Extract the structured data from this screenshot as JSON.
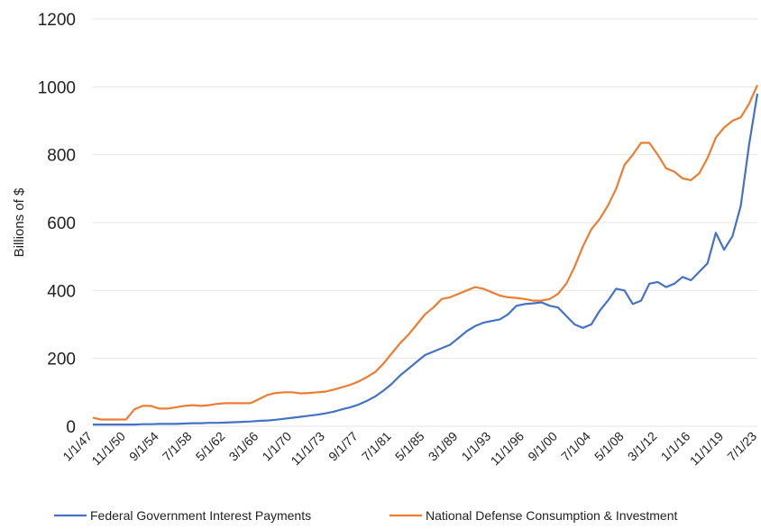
{
  "chart_data": {
    "type": "line",
    "y_label": "Billions of $",
    "categories": [
      "1/1/47",
      null,
      null,
      null,
      "11/1/50",
      null,
      null,
      null,
      "9/1/54",
      null,
      null,
      null,
      "7/1/58",
      null,
      null,
      null,
      "5/1/62",
      null,
      null,
      null,
      "3/1/66",
      null,
      null,
      null,
      "1/1/70",
      null,
      null,
      null,
      "11/1/73",
      null,
      null,
      null,
      "9/1/77",
      null,
      null,
      null,
      "7/1/81",
      null,
      null,
      null,
      "5/1/85",
      null,
      null,
      null,
      "3/1/89",
      null,
      null,
      null,
      "1/1/93",
      null,
      null,
      null,
      "11/1/96",
      null,
      null,
      null,
      "9/1/00",
      null,
      null,
      null,
      "7/1/04",
      null,
      null,
      null,
      "5/1/08",
      null,
      null,
      null,
      "3/1/12",
      null,
      null,
      null,
      "1/1/16",
      null,
      null,
      null,
      "11/1/19",
      null,
      null,
      null,
      "7/1/23"
    ],
    "series": [
      {
        "name": "Federal Government Interest Payments",
        "color": "#4472c4",
        "values": [
          5,
          5,
          5,
          5,
          5,
          5,
          6,
          6,
          7,
          7,
          7,
          8,
          9,
          9,
          10,
          10,
          11,
          12,
          13,
          14,
          16,
          17,
          19,
          22,
          25,
          28,
          31,
          34,
          38,
          43,
          50,
          56,
          64,
          75,
          88,
          105,
          125,
          150,
          170,
          190,
          210,
          220,
          230,
          240,
          260,
          280,
          295,
          305,
          310,
          315,
          330,
          355,
          360,
          362,
          365,
          355,
          350,
          325,
          300,
          290,
          300,
          340,
          370,
          405,
          400,
          360,
          370,
          420,
          425,
          410,
          420,
          440,
          430,
          455,
          480,
          570,
          520,
          560,
          650,
          830,
          980
        ]
      },
      {
        "name": "National Defense Consumption & Investment",
        "color": "#ed7d31",
        "values": [
          25,
          20,
          20,
          20,
          20,
          50,
          60,
          60,
          52,
          52,
          56,
          60,
          62,
          60,
          62,
          66,
          68,
          68,
          68,
          68,
          80,
          92,
          98,
          100,
          100,
          97,
          98,
          100,
          102,
          108,
          115,
          122,
          132,
          145,
          160,
          185,
          215,
          245,
          270,
          300,
          330,
          350,
          375,
          380,
          390,
          400,
          410,
          405,
          395,
          385,
          380,
          378,
          375,
          370,
          370,
          375,
          390,
          420,
          470,
          530,
          580,
          610,
          650,
          700,
          770,
          800,
          835,
          835,
          800,
          760,
          750,
          730,
          725,
          745,
          790,
          850,
          880,
          900,
          910,
          950,
          1005
        ]
      }
    ],
    "ylim": [
      0,
      1200
    ],
    "yticks": [
      0,
      200,
      400,
      600,
      800,
      1000,
      1200
    ],
    "grid": true
  }
}
